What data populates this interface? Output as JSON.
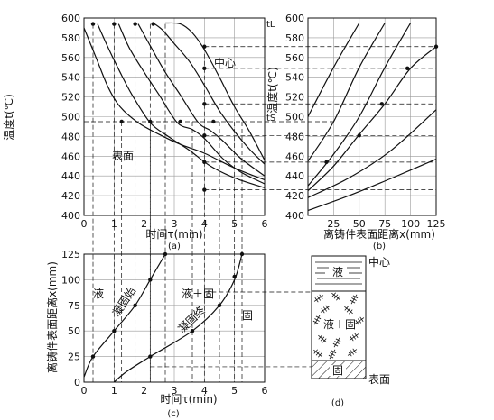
{
  "panel_a": {
    "y_ticks": [
      "600",
      "580",
      "560",
      "540",
      "520",
      "500",
      "480",
      "460",
      "440",
      "420",
      "400"
    ],
    "x_ticks": [
      "0",
      "1",
      "2",
      "3",
      "4",
      "5",
      "6"
    ],
    "ylabel": "温度t(℃)",
    "xlabel": "时间τ(min)",
    "caption": "(a)",
    "label_center": "中心",
    "label_surface": "表面",
    "label_tL": "tL",
    "label_tS": "tS"
  },
  "panel_b": {
    "y_ticks": [
      "600",
      "580",
      "560",
      "540",
      "520",
      "500",
      "480",
      "460",
      "440",
      "420",
      "400"
    ],
    "x_ticks": [
      "25",
      "50",
      "75",
      "100",
      "125"
    ],
    "ylabel": "温度t(℃)",
    "xlabel": "离铸件表面距离x(mm)",
    "caption": "(b)"
  },
  "panel_c": {
    "y_ticks": [
      "125",
      "100",
      "75",
      "50",
      "25",
      "0"
    ],
    "x_ticks": [
      "0",
      "1",
      "2",
      "3",
      "4",
      "5",
      "6"
    ],
    "ylabel": "离铸件表面距离x(mm)",
    "xlabel": "时间τ(min)",
    "caption": "(c)",
    "region_liquid": "液",
    "region_mushy": "液＋固",
    "region_solid": "固",
    "curve_start": "凝固始",
    "curve_end": "凝固终"
  },
  "panel_d": {
    "label_center": "中心",
    "label_surface": "表面",
    "zone_liquid": "液",
    "zone_mushy": "液＋固",
    "zone_solid": "固",
    "caption": "(d)"
  },
  "chart_data": [
    {
      "type": "line",
      "panel": "a",
      "xlabel": "时间τ(min)",
      "ylabel": "温度t(℃)",
      "xlim": [
        0,
        6
      ],
      "ylim": [
        400,
        600
      ],
      "series": [
        {
          "name": "表面",
          "x": [
            0.0,
            0.4,
            0.8,
            1.2,
            1.8,
            2.5,
            3.2,
            4.0,
            5.0,
            6.0
          ],
          "y": [
            590,
            560,
            530,
            510,
            494,
            482,
            472,
            463,
            448,
            436
          ]
        },
        {
          "x": [
            0.45,
            0.8,
            1.2,
            1.6,
            2.2,
            2.8,
            3.5,
            4.2,
            5.0,
            6.0
          ],
          "y": [
            594,
            570,
            545,
            522,
            494,
            480,
            466,
            450,
            438,
            428
          ]
        },
        {
          "x": [
            1.15,
            1.5,
            2.0,
            2.5,
            3.1,
            3.6,
            4.0,
            4.6,
            5.2,
            6.0
          ],
          "y": [
            594,
            570,
            545,
            522,
            494,
            487,
            478,
            458,
            444,
            432
          ]
        },
        {
          "x": [
            1.8,
            2.2,
            2.7,
            3.2,
            3.8,
            4.2,
            4.6,
            5.2,
            6.0
          ],
          "y": [
            594,
            572,
            545,
            522,
            494,
            486,
            476,
            458,
            440
          ]
        },
        {
          "x": [
            2.3,
            2.6,
            3.0,
            3.5,
            4.0,
            4.5,
            5.0,
            5.5,
            6.0
          ],
          "y": [
            595,
            588,
            574,
            556,
            532,
            506,
            485,
            467,
            452
          ]
        },
        {
          "name": "中心",
          "x": [
            2.7,
            3.2,
            3.6,
            4.0,
            4.5,
            5.0,
            5.5,
            6.0
          ],
          "y": [
            595,
            594,
            585,
            568,
            540,
            510,
            485,
            456
          ]
        }
      ],
      "markers": [
        {
          "x": 0.3,
          "y": 594
        },
        {
          "x": 1.0,
          "y": 594
        },
        {
          "x": 1.7,
          "y": 594
        },
        {
          "x": 2.3,
          "y": 594
        },
        {
          "x": 1.25,
          "y": 495
        },
        {
          "x": 2.2,
          "y": 495
        },
        {
          "x": 3.2,
          "y": 495
        },
        {
          "x": 4.3,
          "y": 495
        },
        {
          "x": 4.0,
          "y": 571
        },
        {
          "x": 4.0,
          "y": 549
        },
        {
          "x": 4.0,
          "y": 513
        },
        {
          "x": 4.0,
          "y": 481
        },
        {
          "x": 4.0,
          "y": 454
        },
        {
          "x": 4.0,
          "y": 426
        }
      ]
    },
    {
      "type": "line",
      "panel": "b",
      "xlabel": "离铸件表面距离x(mm)",
      "ylabel": "温度t(℃)",
      "xlim": [
        0,
        125
      ],
      "ylim": [
        400,
        600
      ],
      "series": [
        {
          "x": [
            0,
            25,
            50
          ],
          "y": [
            500,
            550,
            595
          ]
        },
        {
          "x": [
            0,
            25,
            50,
            75
          ],
          "y": [
            455,
            495,
            550,
            595
          ]
        },
        {
          "x": [
            0,
            25,
            50,
            75,
            100
          ],
          "y": [
            430,
            462,
            500,
            550,
            595
          ]
        },
        {
          "x": [
            0,
            25,
            50,
            75,
            100,
            125
          ],
          "y": [
            425,
            450,
            482,
            513,
            549,
            571
          ]
        },
        {
          "x": [
            0,
            40,
            80,
            125
          ],
          "y": [
            418,
            438,
            465,
            507
          ]
        },
        {
          "x": [
            0,
            40,
            80,
            125
          ],
          "y": [
            405,
            420,
            437,
            457
          ]
        }
      ],
      "markers": [
        {
          "x": 18,
          "y": 454
        },
        {
          "x": 50,
          "y": 481
        },
        {
          "x": 72,
          "y": 513
        },
        {
          "x": 97,
          "y": 549
        },
        {
          "x": 125,
          "y": 571
        }
      ]
    },
    {
      "type": "line",
      "panel": "c",
      "xlabel": "时间τ(min)",
      "ylabel": "离铸件表面距离x(mm)",
      "xlim": [
        0,
        6
      ],
      "ylim": [
        0,
        125
      ],
      "series": [
        {
          "name": "凝固始",
          "x": [
            0.0,
            0.3,
            1.0,
            1.7,
            2.2,
            2.7
          ],
          "y": [
            5,
            25,
            50,
            75,
            100,
            125
          ]
        },
        {
          "name": "凝固终",
          "x": [
            1.0,
            1.4,
            2.2,
            3.6,
            4.5,
            5.0,
            5.25
          ],
          "y": [
            0,
            10,
            25,
            50,
            75,
            100,
            125
          ]
        }
      ],
      "markers": [
        {
          "x": 0.3,
          "y": 25
        },
        {
          "x": 1.0,
          "y": 50
        },
        {
          "x": 1.7,
          "y": 75
        },
        {
          "x": 2.2,
          "y": 100
        },
        {
          "x": 2.7,
          "y": 125
        },
        {
          "x": 2.2,
          "y": 25
        },
        {
          "x": 3.6,
          "y": 50
        },
        {
          "x": 4.5,
          "y": 75
        },
        {
          "x": 5.0,
          "y": 103
        },
        {
          "x": 5.25,
          "y": 125
        }
      ]
    }
  ]
}
